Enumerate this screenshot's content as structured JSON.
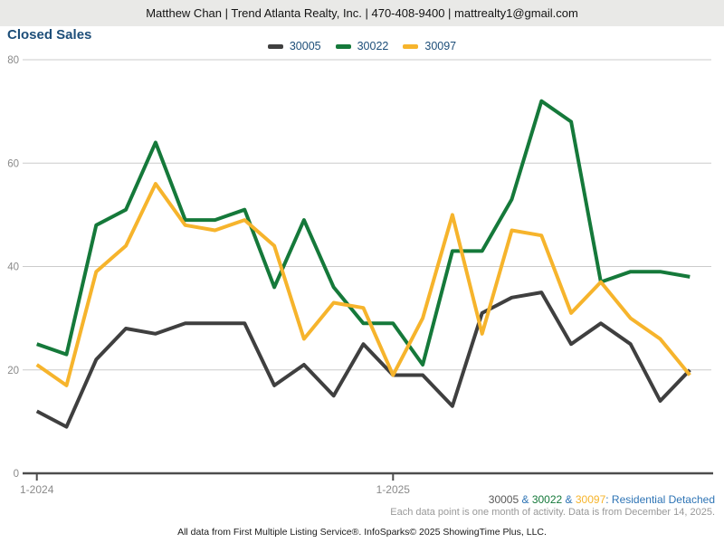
{
  "header": {
    "text": "Matthew Chan | Trend Atlanta Realty, Inc. | 470-408-9400 | mattrealty1@gmail.com"
  },
  "title": "Closed Sales",
  "chart_data": {
    "type": "line",
    "categories": [
      "1-2024",
      "2-2024",
      "3-2024",
      "4-2024",
      "5-2024",
      "6-2024",
      "7-2024",
      "8-2024",
      "9-2024",
      "10-2024",
      "11-2024",
      "12-2024",
      "1-2025",
      "2-2025",
      "3-2025",
      "4-2025",
      "5-2025",
      "6-2025",
      "7-2025",
      "8-2025",
      "9-2025",
      "10-2025",
      "11-2025"
    ],
    "series": [
      {
        "name": "30005",
        "color": "#3f3f3f",
        "values": [
          12,
          9,
          22,
          28,
          27,
          29,
          29,
          29,
          17,
          21,
          15,
          25,
          19,
          19,
          13,
          31,
          34,
          35,
          25,
          29,
          25,
          14,
          20
        ]
      },
      {
        "name": "30022",
        "color": "#15793a",
        "values": [
          25,
          23,
          48,
          51,
          64,
          49,
          49,
          51,
          36,
          49,
          36,
          29,
          29,
          21,
          43,
          43,
          53,
          72,
          68,
          37,
          39,
          39,
          38
        ]
      },
      {
        "name": "30097",
        "color": "#f6b42c",
        "values": [
          21,
          17,
          39,
          44,
          56,
          48,
          47,
          49,
          44,
          26,
          33,
          32,
          19,
          30,
          50,
          27,
          47,
          46,
          31,
          37,
          30,
          26,
          19
        ]
      }
    ],
    "title": "Closed Sales",
    "xlabel": "",
    "ylabel": "",
    "ylim": [
      0,
      80
    ],
    "yticks": [
      0,
      20,
      40,
      60,
      80
    ],
    "xticks": [
      {
        "index": 0,
        "label": "1-2024"
      },
      {
        "index": 12,
        "label": "1-2025"
      }
    ],
    "grid": true,
    "legend_position": "top-center"
  },
  "footer": {
    "line1_segments": [
      {
        "text": "30005",
        "color": "#595959"
      },
      {
        "text": " & ",
        "color": "#2e74b5"
      },
      {
        "text": "30022",
        "color": "#15793a"
      },
      {
        "text": " & ",
        "color": "#2e74b5"
      },
      {
        "text": "30097",
        "color": "#f6b42c"
      },
      {
        "text": ": Residential Detached",
        "color": "#2e74b5"
      }
    ],
    "line2": "Each data point is one month of activity. Data is from December 14, 2025.",
    "line3": "All data from First Multiple Listing Service®. InfoSparks© 2025 ShowingTime Plus, LLC."
  },
  "colors": {
    "header_background": "#e9e9e7",
    "title_navy": "#1d4e79",
    "gridline": "#cbcbcb",
    "axis": "#4d4d4d",
    "axis_label": "#8a8a8a",
    "footer_blue": "#2e74b5",
    "footer_note_gray": "#999999"
  }
}
